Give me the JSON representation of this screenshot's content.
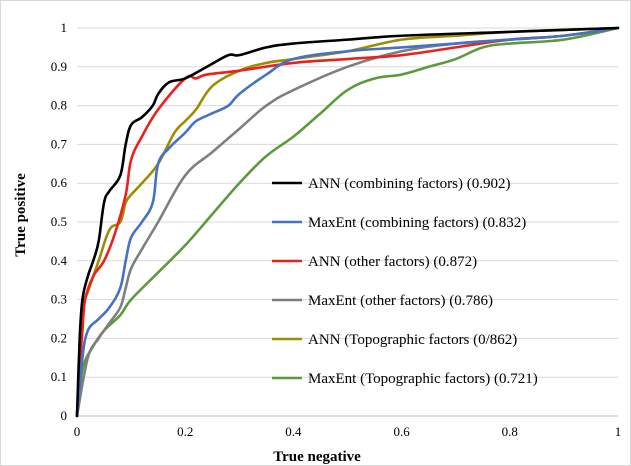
{
  "chart_data": {
    "type": "line",
    "title": "",
    "xlabel": "True negative",
    "ylabel": "True positive",
    "xlim": [
      0,
      1
    ],
    "ylim": [
      0,
      1
    ],
    "x_ticks": [
      "0",
      "0.2",
      "0.4",
      "0.6",
      "0.8",
      "1"
    ],
    "y_ticks": [
      "0",
      "0.1",
      "0.2",
      "0.3",
      "0.4",
      "0.5",
      "0.6",
      "0.7",
      "0.8",
      "0.9",
      "1"
    ],
    "grid": "horizontal",
    "legend_position": "center-right",
    "series": [
      {
        "name": "ANN (combining factors) (0.902)",
        "color": "#000000",
        "points": [
          [
            0,
            0
          ],
          [
            0.005,
            0.2
          ],
          [
            0.01,
            0.3
          ],
          [
            0.02,
            0.36
          ],
          [
            0.03,
            0.4
          ],
          [
            0.04,
            0.45
          ],
          [
            0.05,
            0.55
          ],
          [
            0.06,
            0.58
          ],
          [
            0.08,
            0.62
          ],
          [
            0.09,
            0.7
          ],
          [
            0.1,
            0.75
          ],
          [
            0.12,
            0.77
          ],
          [
            0.14,
            0.8
          ],
          [
            0.15,
            0.83
          ],
          [
            0.17,
            0.86
          ],
          [
            0.2,
            0.87
          ],
          [
            0.24,
            0.9
          ],
          [
            0.28,
            0.93
          ],
          [
            0.3,
            0.93
          ],
          [
            0.35,
            0.95
          ],
          [
            0.4,
            0.96
          ],
          [
            0.5,
            0.97
          ],
          [
            0.6,
            0.98
          ],
          [
            0.8,
            0.99
          ],
          [
            1,
            1
          ]
        ]
      },
      {
        "name": "MaxEnt (combining factors) (0.832)",
        "color": "#4472C4",
        "points": [
          [
            0,
            0
          ],
          [
            0.01,
            0.15
          ],
          [
            0.02,
            0.22
          ],
          [
            0.04,
            0.25
          ],
          [
            0.06,
            0.28
          ],
          [
            0.08,
            0.33
          ],
          [
            0.09,
            0.4
          ],
          [
            0.1,
            0.46
          ],
          [
            0.12,
            0.5
          ],
          [
            0.14,
            0.55
          ],
          [
            0.15,
            0.65
          ],
          [
            0.17,
            0.69
          ],
          [
            0.2,
            0.73
          ],
          [
            0.22,
            0.76
          ],
          [
            0.25,
            0.78
          ],
          [
            0.28,
            0.8
          ],
          [
            0.3,
            0.83
          ],
          [
            0.35,
            0.88
          ],
          [
            0.4,
            0.92
          ],
          [
            0.5,
            0.94
          ],
          [
            0.6,
            0.95
          ],
          [
            0.7,
            0.96
          ],
          [
            0.8,
            0.97
          ],
          [
            0.9,
            0.98
          ],
          [
            1,
            1
          ]
        ]
      },
      {
        "name": "ANN (other factors) (0.872)",
        "color": "#E8231E",
        "points": [
          [
            0,
            0
          ],
          [
            0.005,
            0.12
          ],
          [
            0.01,
            0.22
          ],
          [
            0.015,
            0.3
          ],
          [
            0.03,
            0.36
          ],
          [
            0.05,
            0.4
          ],
          [
            0.07,
            0.47
          ],
          [
            0.09,
            0.57
          ],
          [
            0.1,
            0.66
          ],
          [
            0.12,
            0.72
          ],
          [
            0.15,
            0.79
          ],
          [
            0.2,
            0.87
          ],
          [
            0.22,
            0.87
          ],
          [
            0.24,
            0.88
          ],
          [
            0.3,
            0.89
          ],
          [
            0.4,
            0.91
          ],
          [
            0.5,
            0.92
          ],
          [
            0.6,
            0.93
          ],
          [
            0.7,
            0.95
          ],
          [
            0.8,
            0.97
          ],
          [
            0.9,
            0.98
          ],
          [
            1,
            1
          ]
        ]
      },
      {
        "name": "MaxEnt (other factors) (0.786)",
        "color": "#7F7F7F",
        "points": [
          [
            0,
            0
          ],
          [
            0.02,
            0.15
          ],
          [
            0.04,
            0.2
          ],
          [
            0.06,
            0.24
          ],
          [
            0.08,
            0.28
          ],
          [
            0.09,
            0.33
          ],
          [
            0.1,
            0.38
          ],
          [
            0.12,
            0.43
          ],
          [
            0.15,
            0.5
          ],
          [
            0.2,
            0.62
          ],
          [
            0.25,
            0.68
          ],
          [
            0.3,
            0.74
          ],
          [
            0.35,
            0.8
          ],
          [
            0.4,
            0.84
          ],
          [
            0.5,
            0.9
          ],
          [
            0.6,
            0.94
          ],
          [
            0.7,
            0.96
          ],
          [
            0.8,
            0.97
          ],
          [
            0.9,
            0.98
          ],
          [
            1,
            1
          ]
        ]
      },
      {
        "name": "ANN (Topographic factors (0/862)",
        "color": "#A08C00",
        "points": [
          [
            0,
            0
          ],
          [
            0.005,
            0.15
          ],
          [
            0.01,
            0.28
          ],
          [
            0.02,
            0.32
          ],
          [
            0.04,
            0.4
          ],
          [
            0.06,
            0.48
          ],
          [
            0.08,
            0.5
          ],
          [
            0.09,
            0.55
          ],
          [
            0.1,
            0.57
          ],
          [
            0.12,
            0.6
          ],
          [
            0.15,
            0.65
          ],
          [
            0.18,
            0.73
          ],
          [
            0.2,
            0.76
          ],
          [
            0.22,
            0.79
          ],
          [
            0.25,
            0.85
          ],
          [
            0.3,
            0.89
          ],
          [
            0.35,
            0.91
          ],
          [
            0.4,
            0.92
          ],
          [
            0.5,
            0.94
          ],
          [
            0.6,
            0.97
          ],
          [
            0.7,
            0.98
          ],
          [
            0.8,
            0.99
          ],
          [
            1,
            1
          ]
        ]
      },
      {
        "name": "MaxEnt (Topographic factors) (0.721)",
        "color": "#5B9B3C",
        "points": [
          [
            0,
            0
          ],
          [
            0.01,
            0.12
          ],
          [
            0.03,
            0.18
          ],
          [
            0.05,
            0.22
          ],
          [
            0.08,
            0.26
          ],
          [
            0.1,
            0.3
          ],
          [
            0.15,
            0.37
          ],
          [
            0.2,
            0.44
          ],
          [
            0.25,
            0.52
          ],
          [
            0.3,
            0.6
          ],
          [
            0.35,
            0.67
          ],
          [
            0.4,
            0.72
          ],
          [
            0.45,
            0.78
          ],
          [
            0.5,
            0.84
          ],
          [
            0.55,
            0.87
          ],
          [
            0.6,
            0.88
          ],
          [
            0.65,
            0.9
          ],
          [
            0.7,
            0.92
          ],
          [
            0.75,
            0.95
          ],
          [
            0.8,
            0.96
          ],
          [
            0.9,
            0.97
          ],
          [
            1,
            1
          ]
        ]
      }
    ]
  }
}
